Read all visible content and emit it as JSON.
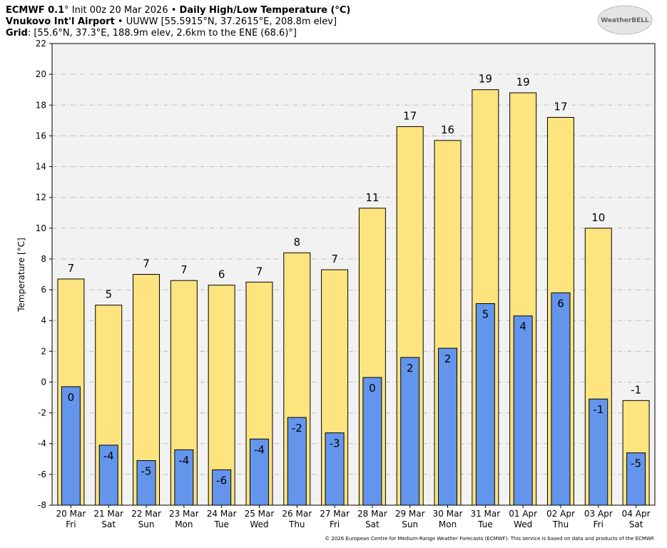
{
  "chart_data": {
    "type": "bar",
    "title_lines": [
      [
        {
          "text": "ECMWF 0.1",
          "bold": true
        },
        {
          "text": "° Init 00z 20 Mar 2026 • ",
          "bold": false
        },
        {
          "text": "Daily High/Low Temperature (°C)",
          "bold": true
        }
      ],
      [
        {
          "text": "Vnukovo Int'l Airport",
          "bold": true
        },
        {
          "text": " • UUWW [55.5915°N, 37.2615°E, 208.8m elev]",
          "bold": false
        }
      ],
      [
        {
          "text": "Grid",
          "bold": true
        },
        {
          "text": ": [55.6°N, 37.3°E, 188.9m elev, 2.6km to the ENE (68.6)°]",
          "bold": false
        }
      ]
    ],
    "logo": "WeatherBELL",
    "credit": "© 2026 European Centre for Medium-Range Weather Forecasts (ECMWF). This service is based on data and products of the ECMWF.",
    "ylabel": "Temperature [°C]",
    "categories": [
      "20 Mar",
      "21 Mar",
      "22 Mar",
      "23 Mar",
      "24 Mar",
      "25 Mar",
      "26 Mar",
      "27 Mar",
      "28 Mar",
      "29 Mar",
      "30 Mar",
      "31 Mar",
      "01 Apr",
      "02 Apr",
      "03 Apr",
      "04 Apr"
    ],
    "weekdays": [
      "Fri",
      "Sat",
      "Sun",
      "Mon",
      "Tue",
      "Wed",
      "Thu",
      "Fri",
      "Sat",
      "Sun",
      "Mon",
      "Tue",
      "Wed",
      "Thu",
      "Fri",
      "Sat"
    ],
    "series": [
      {
        "color": "#fde47f",
        "values": [
          6.7,
          5.0,
          7.0,
          6.6,
          6.3,
          6.5,
          8.4,
          7.3,
          11.3,
          16.6,
          15.7,
          19.0,
          18.8,
          17.2,
          10.0,
          -1.2
        ],
        "value_labels": [
          "7",
          "5",
          "7",
          "7",
          "6",
          "7",
          "8",
          "7",
          "11",
          "17",
          "16",
          "19",
          "19",
          "17",
          "10",
          "-1"
        ]
      },
      {
        "color": "#6495ed",
        "values": [
          -0.3,
          -4.1,
          -5.1,
          -4.4,
          -5.7,
          -3.7,
          -2.3,
          -3.3,
          0.3,
          1.6,
          2.2,
          5.1,
          4.3,
          5.8,
          -1.1,
          -4.6
        ],
        "value_labels": [
          "0",
          "-4",
          "-5",
          "-4",
          "-6",
          "-4",
          "-2",
          "-3",
          "0",
          "2",
          "2",
          "5",
          "4",
          "6",
          "-1",
          "-5"
        ]
      }
    ],
    "ylim": [
      -8,
      22
    ],
    "yticks": [
      -8,
      -6,
      -4,
      -2,
      0,
      2,
      4,
      6,
      8,
      10,
      12,
      14,
      16,
      18,
      20,
      22
    ],
    "grid": true
  }
}
